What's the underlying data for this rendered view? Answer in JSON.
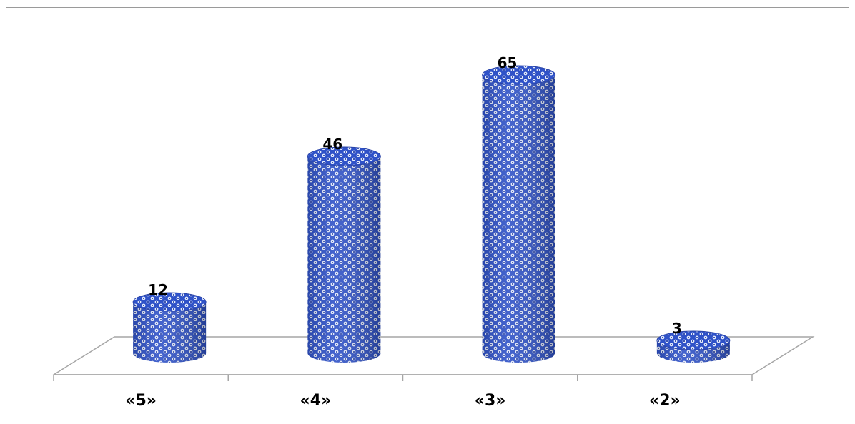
{
  "chart_data": {
    "type": "bar",
    "style": "3d-cylinder",
    "categories": [
      "«5»",
      "«4»",
      "«3»",
      "«2»"
    ],
    "series": [
      {
        "values": [
          12,
          46,
          65,
          3
        ]
      }
    ],
    "data_labels": [
      "12",
      "46",
      "65",
      "3"
    ],
    "ylim": [
      0,
      65
    ],
    "grid": false,
    "legend": "none",
    "bar_color": "#2f52c8",
    "bar_pattern_color": "#ffffff"
  }
}
